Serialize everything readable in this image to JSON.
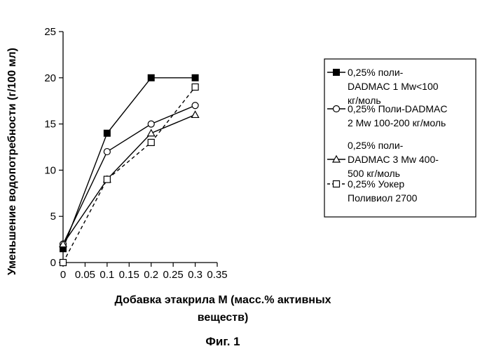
{
  "chart_data": {
    "type": "line",
    "title": "",
    "xlabel_lines": [
      "Добавка этакрила M (масс.% активных",
      "веществ)"
    ],
    "ylabel": "Уменьшение водопотребности (г/100 мл)",
    "xlim": [
      0,
      0.35
    ],
    "ylim": [
      0,
      25
    ],
    "x_ticks": [
      0,
      0.05,
      0.1,
      0.15,
      0.2,
      0.25,
      0.3,
      0.35
    ],
    "x_tick_labels": [
      "0",
      "0.05",
      "0.1",
      "0.15",
      "0.2",
      "0.25",
      "0.3",
      "0.35"
    ],
    "y_ticks": [
      0,
      5,
      10,
      15,
      20,
      25
    ],
    "y_tick_labels": [
      "0",
      "5",
      "10",
      "15",
      "20",
      "25"
    ],
    "grid": false,
    "legend_position": "right",
    "series": [
      {
        "name_lines": [
          "0,25% поли-",
          "DADMAC 1 Mw<100",
          "кг/моль"
        ],
        "marker": "filled-square",
        "dash": "solid",
        "x": [
          0,
          0.1,
          0.2,
          0.3
        ],
        "y": [
          1.5,
          14,
          20,
          20
        ]
      },
      {
        "name_lines": [
          "0,25% Поли-DADMAC",
          "2 Mw 100-200 кг/моль"
        ],
        "marker": "open-circle",
        "dash": "solid",
        "x": [
          0,
          0.1,
          0.2,
          0.3
        ],
        "y": [
          2,
          12,
          15,
          17
        ]
      },
      {
        "name_lines": [
          "0,25% поли-",
          "DADMAC 3 Mw 400-",
          "500 кг/моль"
        ],
        "marker": "open-triangle",
        "dash": "solid",
        "x": [
          0,
          0.1,
          0.2,
          0.3
        ],
        "y": [
          2,
          9,
          14,
          16
        ]
      },
      {
        "name_lines": [
          "0,25% Уокер",
          "Поливиол 2700"
        ],
        "marker": "open-square",
        "dash": "dashed",
        "x": [
          0,
          0.1,
          0.2,
          0.3
        ],
        "y": [
          0,
          9,
          13,
          19
        ]
      }
    ]
  },
  "caption": "Фиг. 1"
}
